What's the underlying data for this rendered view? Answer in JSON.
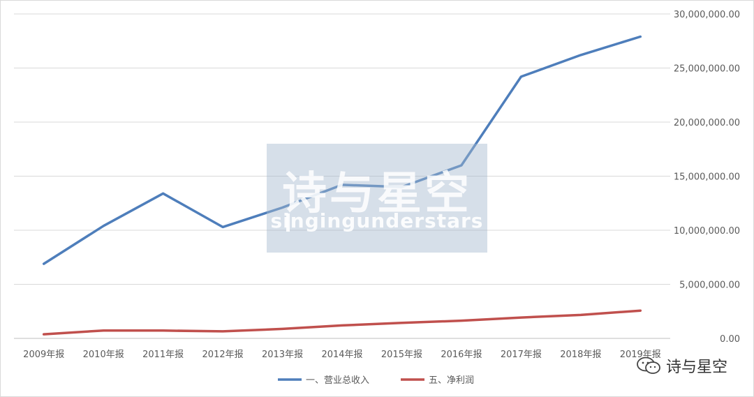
{
  "chart_data": {
    "type": "line",
    "categories": [
      "2009年报",
      "2010年报",
      "2011年报",
      "2012年报",
      "2013年报",
      "2014年报",
      "2015年报",
      "2016年报",
      "2017年报",
      "2018年报",
      "2019年报"
    ],
    "series": [
      {
        "name": "一、营业总收入",
        "color": "#4e7ebb",
        "values": [
          6900000,
          10400000,
          13400000,
          10300000,
          12100000,
          14200000,
          14000000,
          16000000,
          24200000,
          26200000,
          27900000
        ]
      },
      {
        "name": "五、净利润",
        "color": "#c0504d",
        "values": [
          380000,
          730000,
          720000,
          650000,
          880000,
          1200000,
          1430000,
          1640000,
          1930000,
          2170000,
          2570000
        ]
      }
    ],
    "y_ticks": [
      "30,000,000.00",
      "25,000,000.00",
      "20,000,000.00",
      "15,000,000.00",
      "10,000,000.00",
      "5,000,000.00",
      "0.00"
    ],
    "y_tick_values": [
      30000000,
      25000000,
      20000000,
      15000000,
      10000000,
      5000000,
      0
    ],
    "ylim": [
      0,
      30000000
    ],
    "y_axis_side": "right",
    "grid": true,
    "legend_position": "bottom"
  },
  "watermark": {
    "cn": "诗与星空",
    "en": "singingunderstars"
  },
  "brand": {
    "name": "诗与星空",
    "icon": "wechat-icon"
  }
}
